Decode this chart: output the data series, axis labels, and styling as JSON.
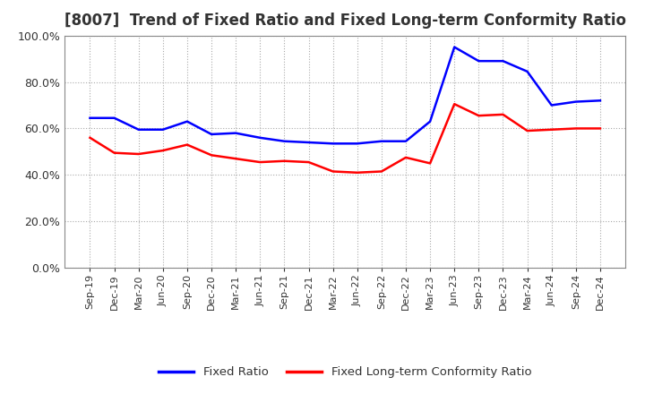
{
  "title": "[8007]  Trend of Fixed Ratio and Fixed Long-term Conformity Ratio",
  "x_labels": [
    "Sep-19",
    "Dec-19",
    "Mar-20",
    "Jun-20",
    "Sep-20",
    "Dec-20",
    "Mar-21",
    "Jun-21",
    "Sep-21",
    "Dec-21",
    "Mar-22",
    "Jun-22",
    "Sep-22",
    "Dec-22",
    "Mar-23",
    "Jun-23",
    "Sep-23",
    "Dec-23",
    "Mar-24",
    "Jun-24",
    "Sep-24",
    "Dec-24"
  ],
  "fixed_ratio": [
    0.645,
    0.645,
    0.595,
    0.595,
    0.63,
    0.575,
    0.58,
    0.56,
    0.545,
    0.54,
    0.535,
    0.535,
    0.545,
    0.545,
    0.63,
    0.95,
    0.89,
    0.89,
    0.845,
    0.7,
    0.715,
    0.72
  ],
  "fixed_lt_ratio": [
    0.56,
    0.495,
    0.49,
    0.505,
    0.53,
    0.485,
    0.47,
    0.455,
    0.46,
    0.455,
    0.415,
    0.41,
    0.415,
    0.475,
    0.45,
    0.705,
    0.655,
    0.66,
    0.59,
    0.595,
    0.6,
    0.6
  ],
  "fixed_ratio_color": "#0000FF",
  "fixed_lt_ratio_color": "#FF0000",
  "ylim": [
    0.0,
    1.0
  ],
  "yticks": [
    0.0,
    0.2,
    0.4,
    0.6,
    0.8,
    1.0
  ],
  "background_color": "#FFFFFF",
  "plot_bg_color": "#FFFFFF",
  "grid_color": "#AAAAAA",
  "title_fontsize": 12,
  "legend_labels": [
    "Fixed Ratio",
    "Fixed Long-term Conformity Ratio"
  ]
}
